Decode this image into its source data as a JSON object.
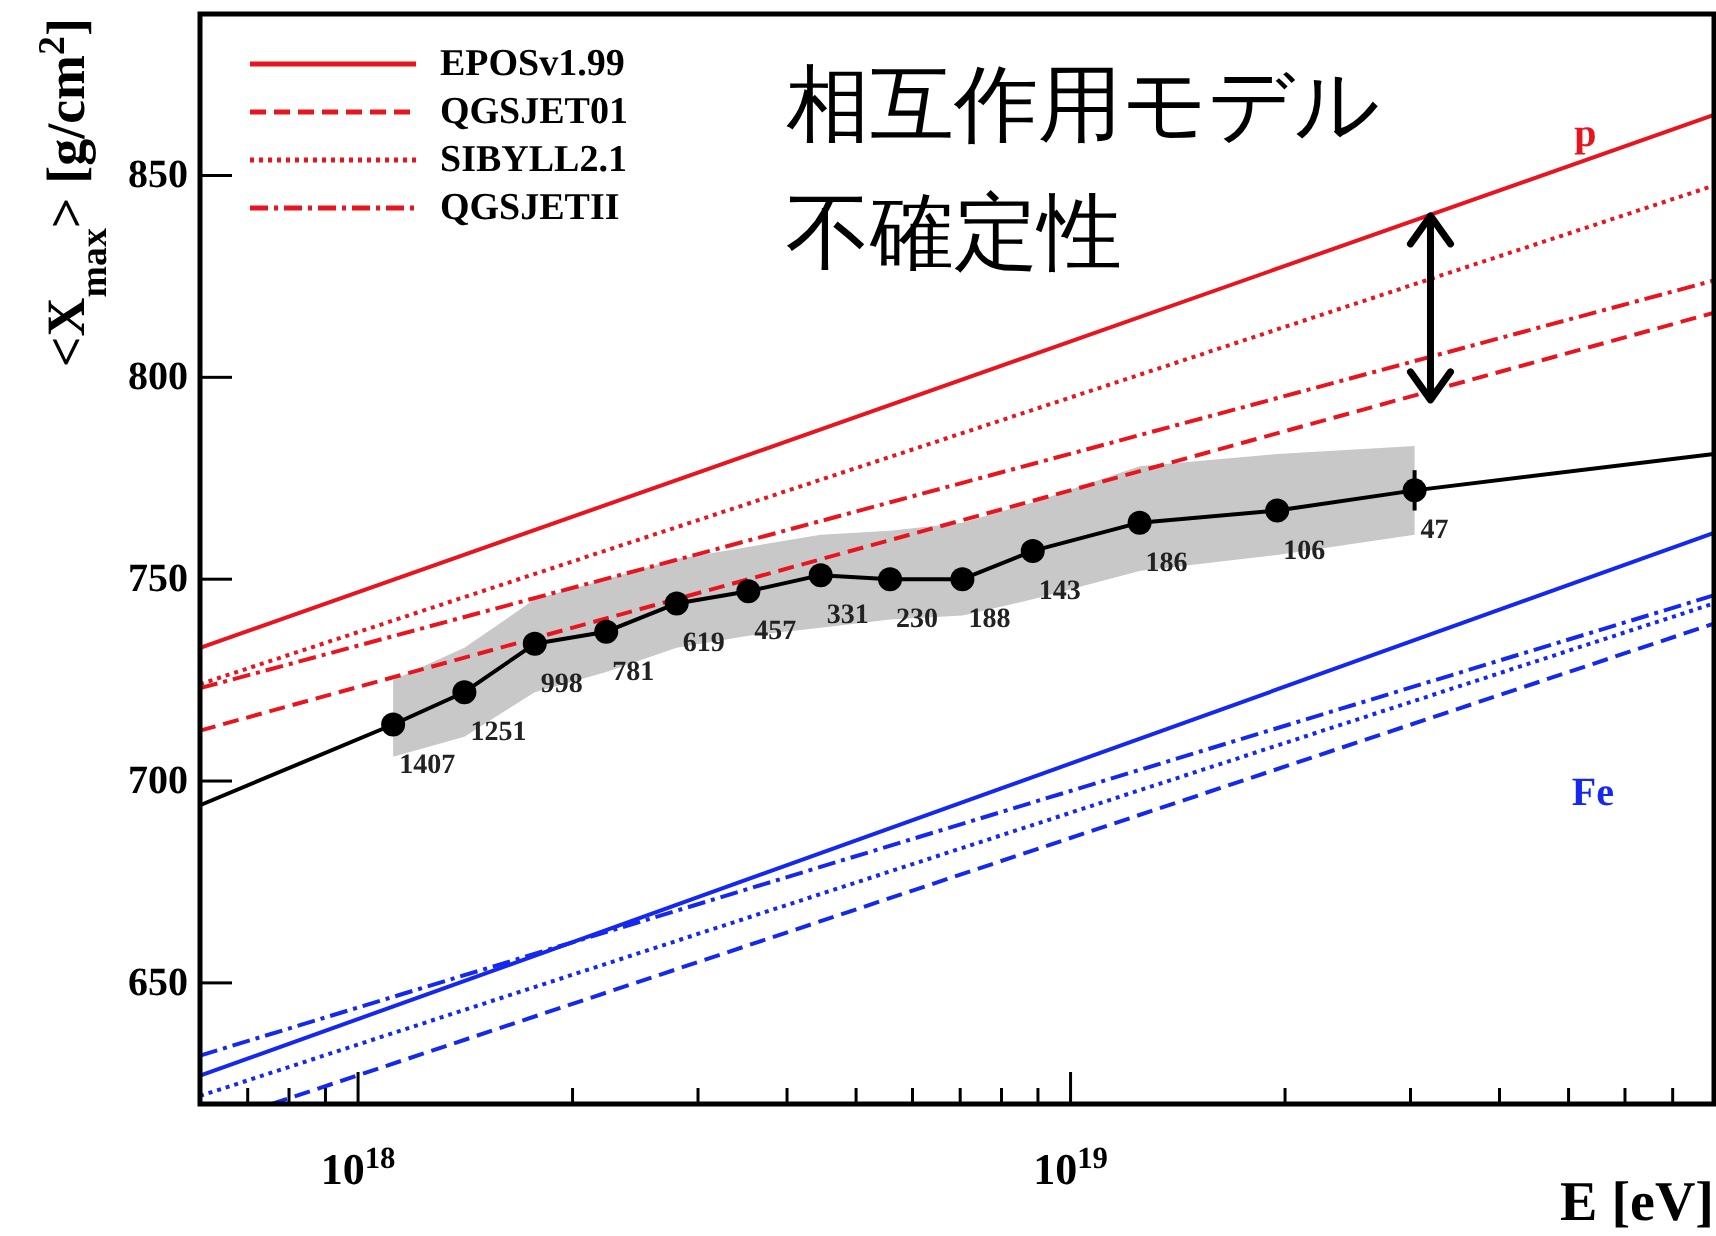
{
  "chart_data": {
    "type": "line",
    "ylabel": "<X$_{max}$> [g/cm$^{2}$]",
    "xlabel": "E [eV]",
    "log": "x",
    "xlim": [
      6e+17,
      8e+19
    ],
    "ylim": [
      620,
      890
    ],
    "xticks": [
      {
        "value": 1e+18,
        "label": "10$^{18}$"
      },
      {
        "value": 1e+19,
        "label": "10$^{19}$"
      }
    ],
    "yticks": [
      650,
      700,
      750,
      800,
      850
    ],
    "grid": false,
    "legend": "top left",
    "series": [
      {
        "type": "line",
        "color": "#000000",
        "marker": "none",
        "line_style": "solid",
        "x": [
          6e+17,
          1.12e+18,
          1.41e+18,
          1.77e+18,
          2.23e+18,
          2.8e+18,
          3.53e+18,
          4.46e+18,
          5.58e+18,
          7.05e+18,
          8.85e+18,
          1.25e+19,
          1.95e+19,
          3.04e+19,
          8e+19
        ],
        "values": [
          694,
          714,
          722,
          734,
          737,
          744,
          747,
          751,
          750,
          750,
          757,
          764,
          767,
          772,
          781
        ]
      },
      {
        "type": "scatter",
        "color": "#000000",
        "marker": "circle",
        "x": [
          1.12e+18,
          1.41e+18,
          1.77e+18,
          2.23e+18,
          2.8e+18,
          3.53e+18,
          4.46e+18,
          5.58e+18,
          7.05e+18,
          8.85e+18,
          1.25e+19,
          1.95e+19,
          3.04e+19
        ],
        "values": [
          714,
          722,
          734,
          737,
          744,
          747,
          751,
          750,
          750,
          757,
          764,
          767,
          772
        ],
        "errors": [
          null,
          null,
          null,
          null,
          null,
          null,
          null,
          null,
          null,
          null,
          null,
          null,
          5
        ],
        "lower": [
          706,
          711,
          722,
          727,
          733,
          736,
          738,
          740,
          741,
          745,
          752,
          756,
          761
        ],
        "upper": [
          725,
          733,
          745,
          750,
          755,
          758,
          761,
          762,
          764,
          769,
          778,
          781,
          783
        ]
      },
      {
        "type": "line",
        "name": "EPOSv1.99",
        "color": "#e8141e",
        "line_style": "solid",
        "x": [
          6e+17,
          8e+19
        ],
        "values": [
          733,
          865
        ]
      },
      {
        "type": "line",
        "name": "QGSJET01",
        "color": "#e8141e",
        "line_style": "dashed",
        "x": [
          6e+17,
          8e+19
        ],
        "values": [
          712.5,
          816
        ]
      },
      {
        "type": "line",
        "name": "SIBYLL2.1",
        "color": "#e8141e",
        "line_style": "dotted",
        "x": [
          6e+17,
          8e+19
        ],
        "values": [
          724,
          847.5
        ]
      },
      {
        "type": "line",
        "name": "QGSJETII",
        "color": "#e8141e",
        "line_style": "dashdot",
        "x": [
          6e+17,
          8e+19
        ],
        "values": [
          723,
          824
        ]
      },
      {
        "type": "line",
        "color": "#1428f0",
        "line_style": "solid",
        "x": [
          6e+17,
          8e+19
        ],
        "values": [
          627,
          761.5
        ]
      },
      {
        "type": "line",
        "color": "#1428f0",
        "line_style": "dashed",
        "x": [
          7.57e+17,
          8e+19
        ],
        "values": [
          620,
          739
        ]
      },
      {
        "type": "line",
        "color": "#1428f0",
        "line_style": "dotted",
        "x": [
          6e+17,
          8e+19
        ],
        "values": [
          622,
          744
        ]
      },
      {
        "type": "line",
        "color": "#1428f0",
        "line_style": "dashdot",
        "x": [
          6e+17,
          8e+19
        ],
        "values": [
          632,
          746
        ]
      }
    ],
    "annotations": [
      {
        "text": "相互作用モデル",
        "x": 3.2e+19,
        "y": 840
      },
      "不確定性",
      "p",
      "Fe",
      {
        "text": "1407",
        "x": 1.12e+18,
        "y": 714
      },
      {
        "text": "1251",
        "x": 1.41e+18,
        "y": 722
      },
      {
        "text": "998",
        "x": 1.77e+18,
        "y": 734
      },
      {
        "text": "781",
        "x": 2.23e+18,
        "y": 737
      },
      {
        "text": "619",
        "x": 2.8e+18,
        "y": 744
      },
      {
        "text": "457",
        "x": 3.53e+18,
        "y": 747
      },
      {
        "text": "331",
        "x": 4.46e+18,
        "y": 751
      },
      {
        "text": "230",
        "x": 5.58e+18,
        "y": 750
      },
      {
        "text": "188",
        "x": 7.05e+18,
        "y": 750
      },
      {
        "text": "143",
        "x": 8.85e+18,
        "y": 757
      },
      {
        "text": "186",
        "x": 1.25e+19,
        "y": 764
      },
      {
        "text": "106",
        "x": 1.95e+19,
        "y": 767
      },
      {
        "text": "47",
        "x": 3.04e+19,
        "y": 772
      }
    ]
  }
}
